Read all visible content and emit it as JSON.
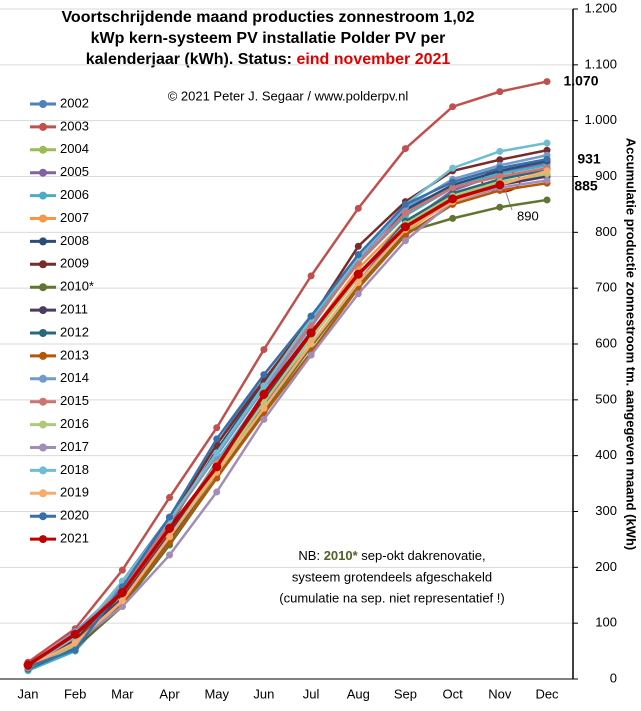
{
  "chart_data": {
    "type": "line",
    "title": [
      "Voortschrijdende maand producties zonnestroom 1,02",
      "kWp kern-systeem PV installatie Polder PV per",
      "kalenderjaar (kWh). Status:"
    ],
    "title_highlight": "eind november 2021",
    "subtitle": "© 2021 Peter J. Segaar / www.polderpv.nl",
    "y_label": "Accumulatie productie zonnestroom tm. aangegeven maand (kWh)",
    "categories": [
      "Jan",
      "Feb",
      "Mar",
      "Apr",
      "May",
      "Jun",
      "Jul",
      "Aug",
      "Sep",
      "Oct",
      "Nov",
      "Dec"
    ],
    "ylim": [
      0,
      1200
    ],
    "yticks": [
      0,
      100,
      200,
      300,
      400,
      500,
      600,
      700,
      800,
      900,
      {
        "value": 1000,
        "label": "1.000"
      },
      {
        "value": 1100,
        "label": "1.100"
      },
      {
        "value": 1200,
        "label": "1.200"
      }
    ],
    "grid": true,
    "legend": "left",
    "series": [
      {
        "name": "2002",
        "color": "#4f81bd",
        "values": [
          20,
          60,
          175,
          290,
          420,
          545,
          650,
          755,
          845,
          880,
          905,
          925
        ]
      },
      {
        "name": "2003",
        "color": "#c0504d",
        "values": [
          30,
          90,
          195,
          325,
          450,
          590,
          722,
          843,
          950,
          1025,
          1052,
          1070
        ]
      },
      {
        "name": "2004",
        "color": "#9bbb59",
        "values": [
          22,
          58,
          135,
          245,
          365,
          490,
          600,
          705,
          800,
          860,
          885,
          905
        ]
      },
      {
        "name": "2005",
        "color": "#8064a2",
        "values": [
          18,
          55,
          140,
          255,
          375,
          490,
          600,
          710,
          815,
          875,
          905,
          925
        ]
      },
      {
        "name": "2006",
        "color": "#4bacc6",
        "values": [
          15,
          50,
          145,
          260,
          390,
          510,
          640,
          745,
          830,
          880,
          905,
          920
        ]
      },
      {
        "name": "2007",
        "color": "#f79646",
        "values": [
          22,
          65,
          150,
          265,
          385,
          500,
          620,
          735,
          820,
          870,
          895,
          912
        ]
      },
      {
        "name": "2008",
        "color": "#2c4d75",
        "values": [
          20,
          60,
          155,
          275,
          410,
          530,
          645,
          755,
          840,
          885,
          910,
          928
        ]
      },
      {
        "name": "2009",
        "color": "#772c2a",
        "values": [
          25,
          70,
          160,
          285,
          420,
          535,
          645,
          775,
          855,
          910,
          930,
          947
        ]
      },
      {
        "name": "2010*",
        "color": "#5f7530",
        "values": [
          18,
          55,
          130,
          240,
          360,
          480,
          595,
          705,
          800,
          825,
          845,
          858
        ]
      },
      {
        "name": "2011",
        "color": "#4d3b62",
        "values": [
          22,
          65,
          145,
          260,
          380,
          500,
          615,
          725,
          815,
          860,
          885,
          900
        ]
      },
      {
        "name": "2012",
        "color": "#276a7c",
        "values": [
          18,
          55,
          140,
          250,
          370,
          495,
          610,
          720,
          820,
          870,
          895,
          912
        ]
      },
      {
        "name": "2013",
        "color": "#b65708",
        "values": [
          20,
          60,
          135,
          245,
          360,
          475,
          585,
          700,
          795,
          850,
          875,
          888
        ]
      },
      {
        "name": "2014",
        "color": "#729aca",
        "values": [
          22,
          85,
          165,
          280,
          400,
          520,
          630,
          750,
          845,
          895,
          920,
          938
        ]
      },
      {
        "name": "2015",
        "color": "#cd7371",
        "values": [
          25,
          80,
          160,
          280,
          405,
          525,
          635,
          745,
          835,
          880,
          900,
          915
        ]
      },
      {
        "name": "2016",
        "color": "#afc97a",
        "values": [
          20,
          60,
          140,
          255,
          375,
          495,
          610,
          720,
          815,
          865,
          890,
          905
        ]
      },
      {
        "name": "2017",
        "color": "#a18db6",
        "values": [
          20,
          65,
          130,
          222,
          335,
          465,
          580,
          690,
          785,
          855,
          880,
          893
        ]
      },
      {
        "name": "2018",
        "color": "#6fbdd1",
        "values": [
          22,
          75,
          175,
          285,
          405,
          525,
          645,
          755,
          850,
          915,
          945,
          960
        ]
      },
      {
        "name": "2019",
        "color": "#f9ab6b",
        "values": [
          22,
          65,
          140,
          255,
          370,
          485,
          600,
          710,
          805,
          855,
          885,
          910
        ]
      },
      {
        "name": "2020",
        "color": "#3a6fa8",
        "values": [
          22,
          52,
          165,
          290,
          430,
          545,
          650,
          760,
          850,
          890,
          915,
          931
        ]
      },
      {
        "name": "2021",
        "color": "#c00000",
        "values": [
          25,
          80,
          155,
          270,
          380,
          510,
          620,
          725,
          810,
          860,
          885,
          null
        ]
      }
    ],
    "annotations": [
      {
        "text": "1.070",
        "color": "#c00000"
      },
      {
        "text": "931",
        "color": "#6f9fc8"
      },
      {
        "text": "885",
        "color": "#0000cc"
      },
      {
        "text": "890",
        "color": "#c00000"
      }
    ],
    "note": {
      "prefix": "NB:",
      "highlight": "2010*",
      "rest": "sep-okt dakrenovatie,",
      "lines": [
        "systeem grotendeels afgeschakeld",
        "(cumulatie na sep. niet representatief !)"
      ]
    }
  }
}
